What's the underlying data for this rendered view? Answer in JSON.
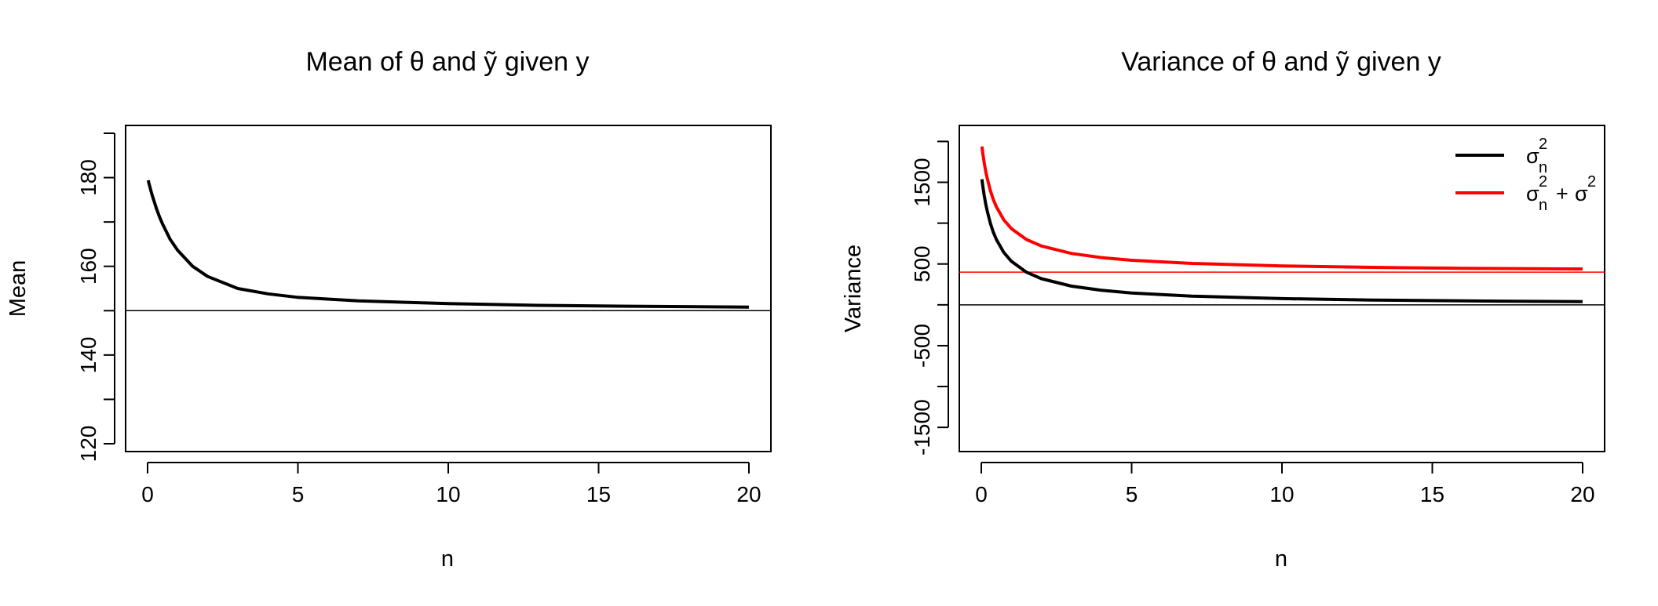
{
  "chart_data": [
    {
      "type": "line",
      "title": "Mean of θ and ỹ given y",
      "xlabel": "n",
      "ylabel": "Mean",
      "xlim": [
        0,
        20
      ],
      "ylim": [
        120,
        190
      ],
      "xticks": [
        "0",
        "5",
        "10",
        "15",
        "20"
      ],
      "yticks": [
        "120",
        "140",
        "160",
        "180"
      ],
      "x": [
        0.02,
        0.05,
        0.1,
        0.15,
        0.2,
        0.3,
        0.4,
        0.5,
        0.75,
        1,
        1.5,
        2,
        3,
        4,
        5,
        7,
        10,
        13,
        16,
        20
      ],
      "series": [
        {
          "color": "#000000",
          "values": [
            179.4,
            178.6,
            177.3,
            176.1,
            175.0,
            172.9,
            171.1,
            169.5,
            166.1,
            163.6,
            160.0,
            157.7,
            155.0,
            153.8,
            153.0,
            152.2,
            151.6,
            151.2,
            151.0,
            150.8
          ]
        }
      ],
      "hlines": [
        {
          "y": 150,
          "color": "#000000"
        }
      ],
      "grid": false
    },
    {
      "type": "line",
      "title": "Variance of θ and ỹ given y",
      "xlabel": "n",
      "ylabel": "Variance",
      "xlim": [
        0,
        20
      ],
      "ylim": [
        -1700,
        2100
      ],
      "xticks": [
        "0",
        "5",
        "10",
        "15",
        "20"
      ],
      "yticks": [
        "-1500",
        "-500",
        "500",
        "1500"
      ],
      "x": [
        0.02,
        0.05,
        0.1,
        0.15,
        0.2,
        0.3,
        0.4,
        0.5,
        0.75,
        1,
        1.5,
        2,
        3,
        4,
        5,
        7,
        10,
        13,
        16,
        20
      ],
      "series": [
        {
          "name": "σn² (legend: σ, sub n, sup 2)",
          "color": "#000000",
          "values": [
            1538,
            1455,
            1333,
            1231,
            1143,
            1000,
            889,
            800,
            640,
            533,
            400,
            320,
            229,
            178,
            145,
            107,
            76,
            59,
            48,
            39
          ]
        },
        {
          "name": "σn² + σ² (legend: σ, sub n, sup 2, +, σ, sup 2)",
          "color": "#ff0000",
          "values": [
            1938,
            1855,
            1733,
            1631,
            1543,
            1400,
            1289,
            1200,
            1040,
            933,
            800,
            720,
            629,
            578,
            545,
            507,
            476,
            459,
            448,
            439
          ]
        }
      ],
      "hlines": [
        {
          "y": 0,
          "color": "#000000"
        },
        {
          "y": 400,
          "color": "#ff0000"
        }
      ],
      "legend": {
        "position": "top-right",
        "entries": [
          {
            "color": "#000000",
            "sym": "σ",
            "sub": "n",
            "sup": "2",
            "tail": "",
            "tail_sym": "",
            "tail_sup": ""
          },
          {
            "color": "#ff0000",
            "sym": "σ",
            "sub": "n",
            "sup": "2",
            "tail": "+",
            "tail_sym": "σ",
            "tail_sup": "2"
          }
        ]
      },
      "grid": false
    }
  ]
}
